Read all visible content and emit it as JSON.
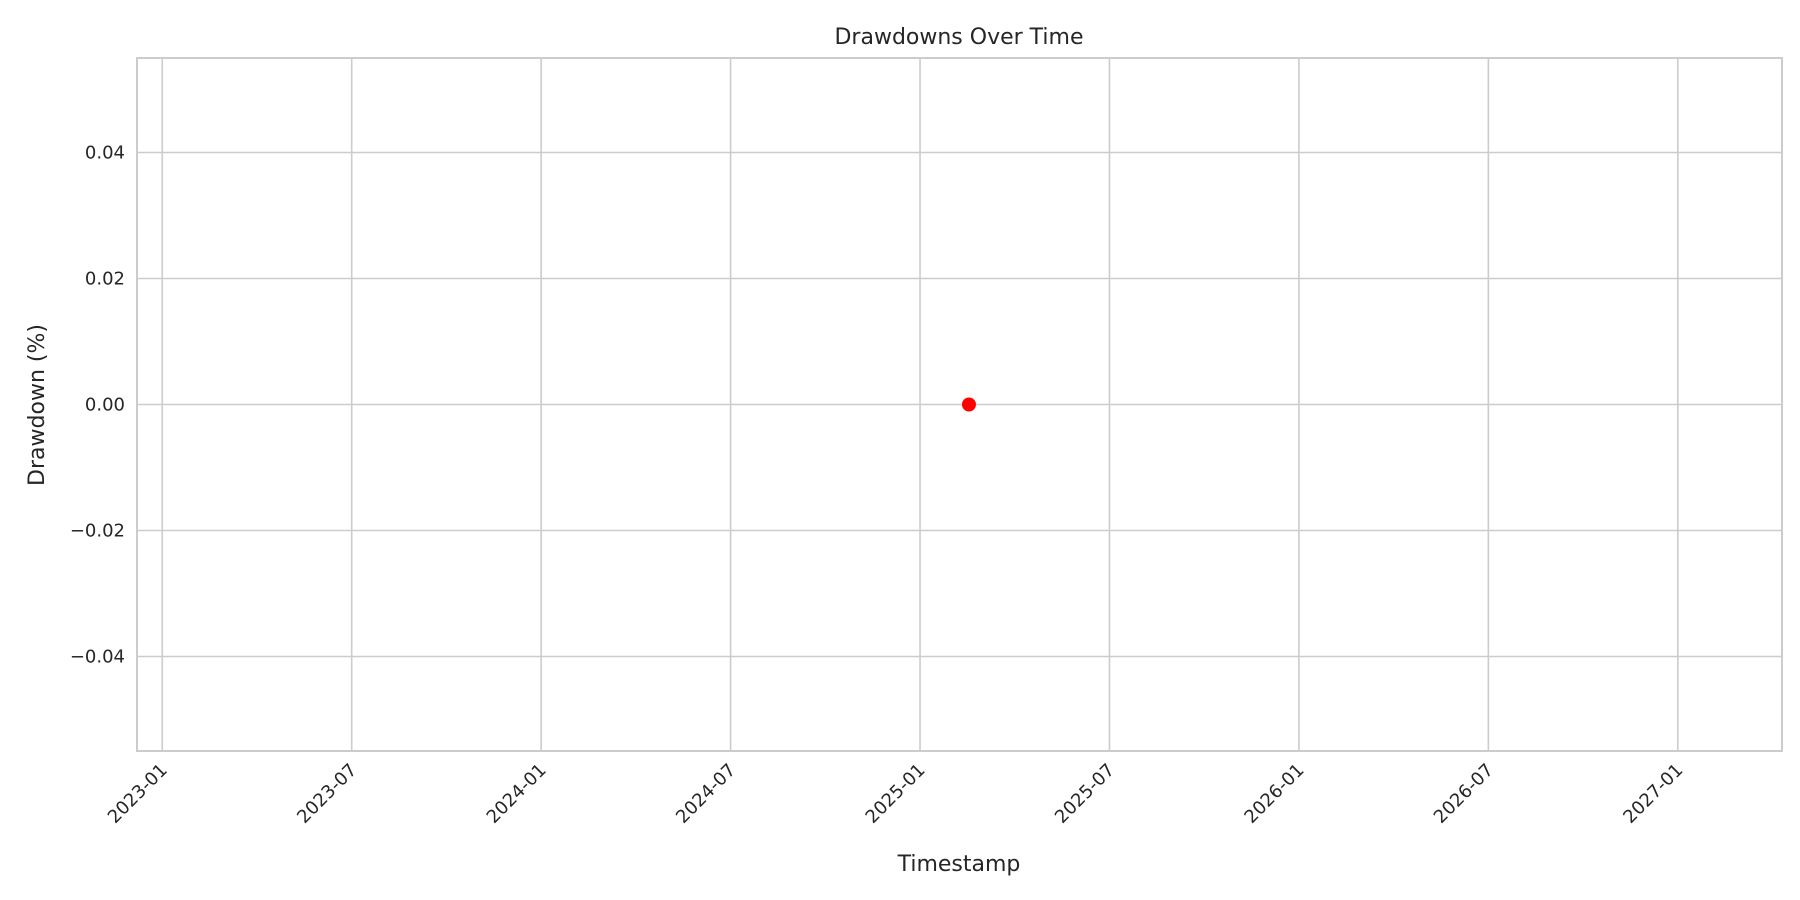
{
  "chart_data": {
    "type": "scatter",
    "title": "Drawdowns Over Time",
    "xlabel": "Timestamp",
    "ylabel": "Drawdown (%)",
    "x_tick_labels": [
      "2023-01",
      "2023-07",
      "2024-01",
      "2024-07",
      "2025-01",
      "2025-07",
      "2026-01",
      "2026-07",
      "2027-01"
    ],
    "y_tick_labels": [
      "−0.04",
      "−0.02",
      "0.00",
      "0.02",
      "0.04"
    ],
    "y_ticks": [
      -0.04,
      -0.02,
      0.0,
      0.02,
      0.04
    ],
    "ylim": [
      -0.055,
      0.055
    ],
    "xlim_months": [
      -0.8,
      51.3
    ],
    "x_tick_months": [
      0,
      6,
      12,
      18,
      24,
      30,
      36,
      42,
      48
    ],
    "x_origin": "2023-01",
    "series": [
      {
        "name": "Drawdown",
        "color": "#ff0000",
        "points": [
          {
            "x_month": 25.55,
            "y": 0.0
          }
        ]
      }
    ],
    "grid": true
  }
}
